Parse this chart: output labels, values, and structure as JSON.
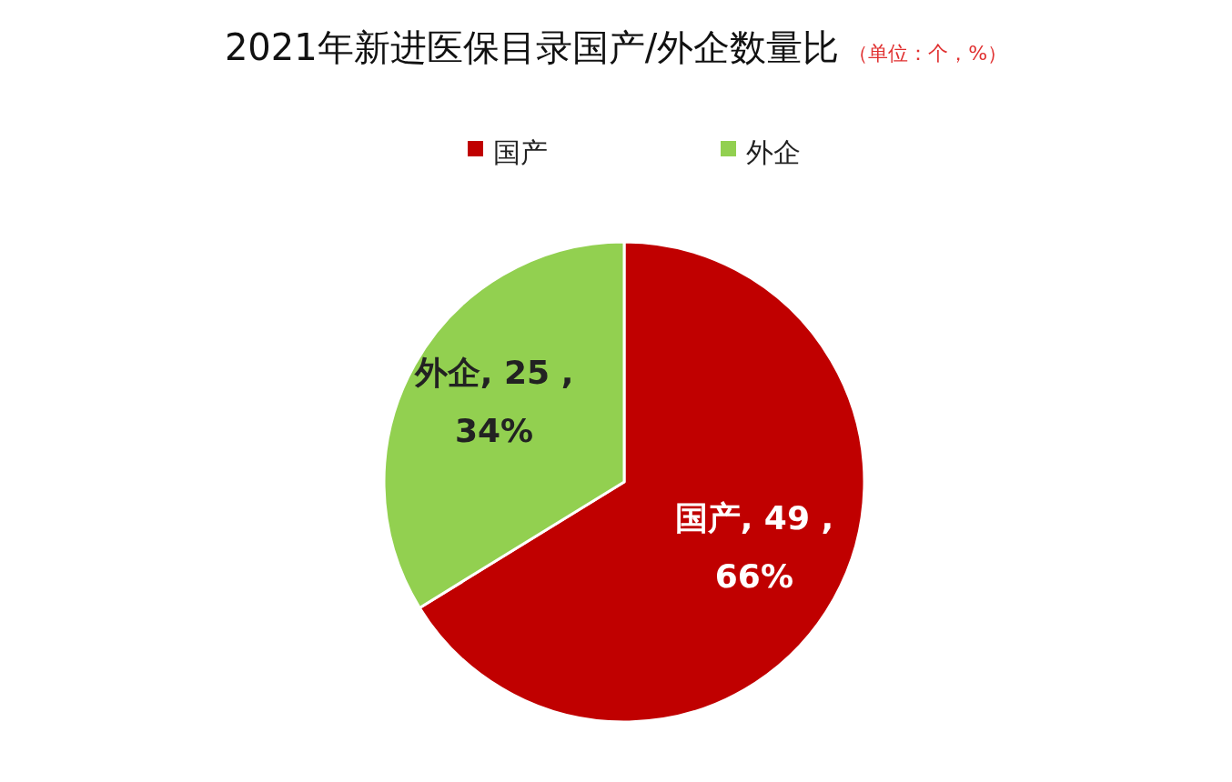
{
  "chart_data": {
    "type": "pie",
    "title": "2021年新进医保目录国产/外企数量比",
    "subtitle": "（单位：个，%）",
    "categories": [
      "国产",
      "外企"
    ],
    "values": [
      49,
      25
    ],
    "colors": [
      "#c00000",
      "#92d050"
    ],
    "value_labels": [
      "国产, 49 , 66%",
      "外企, 25 , 34%"
    ],
    "legend": "top"
  }
}
